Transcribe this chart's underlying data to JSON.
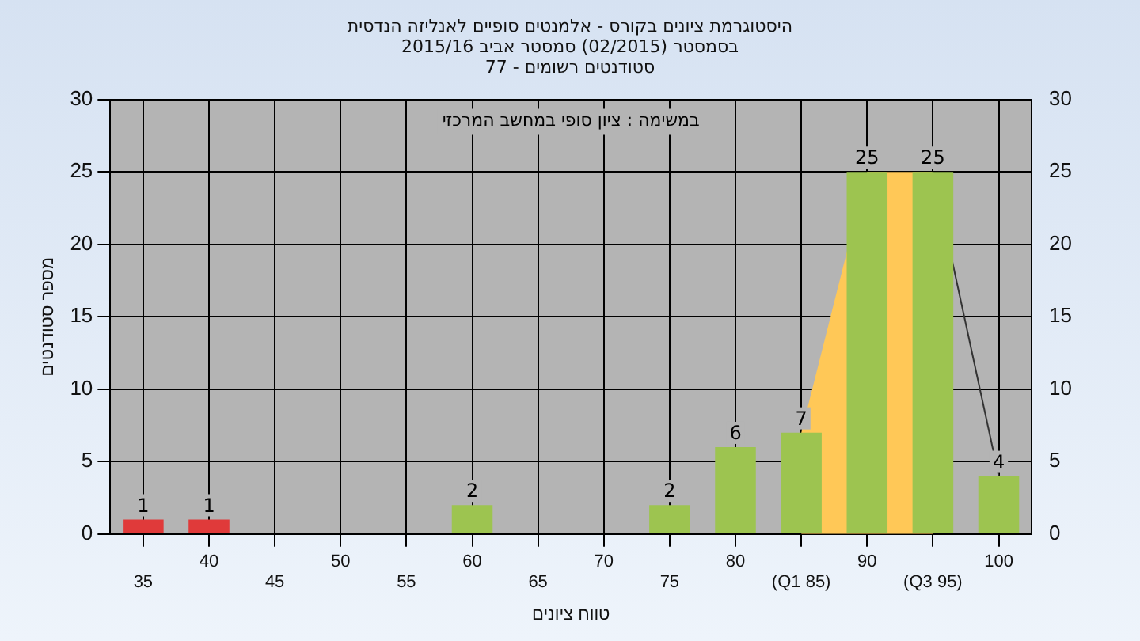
{
  "chart_data": {
    "type": "bar",
    "title": "היסטוגרמת ציונים בקורס - אלמנטים סופיים לאנליזה הנדסית\nבסמסטר  (02/2015)  סמסטר אביב 2015/16\nסטודנטים רשומים - 77",
    "xlabel": "טווח ציונים",
    "ylabel": "מספר סטודנטים",
    "annotations": [
      "במשימה : ציון סופי במחשב המרכזי"
    ],
    "categories": [
      "35",
      "40",
      "45",
      "50",
      "55",
      "60",
      "65",
      "70",
      "75",
      "80",
      "(Q1 85)",
      "90",
      "(Q3 95)",
      "100"
    ],
    "series": [
      {
        "type": "area",
        "color": "#ffc857",
        "values": [
          null,
          null,
          null,
          null,
          null,
          null,
          null,
          null,
          null,
          null,
          7,
          25,
          25,
          null
        ]
      },
      {
        "type": "line",
        "color": "#333333",
        "values": [
          null,
          null,
          null,
          null,
          null,
          null,
          null,
          null,
          null,
          null,
          null,
          null,
          25,
          4
        ]
      },
      {
        "colors": [
          "#e03a3a",
          "#e03a3a",
          "#9dc450",
          "#9dc450",
          "#9dc450",
          "#9dc450",
          "#9dc450",
          "#9dc450",
          "#9dc450",
          "#9dc450",
          "#9dc450",
          "#9dc450",
          "#9dc450",
          "#9dc450"
        ],
        "values": [
          1,
          1,
          null,
          null,
          null,
          2,
          null,
          null,
          2,
          6,
          7,
          25,
          25,
          4
        ],
        "value_labels": [
          "1",
          "1",
          null,
          null,
          null,
          "2",
          null,
          null,
          "2",
          "6",
          "7",
          "25",
          "25",
          "4"
        ]
      }
    ],
    "ylim": [
      0,
      30
    ],
    "yticks": [
      0,
      5,
      10,
      15,
      20,
      25,
      30
    ],
    "y2lim": [
      0,
      30
    ],
    "y2ticks": [
      0,
      5,
      10,
      15,
      20,
      25,
      30
    ],
    "grid": true,
    "legend": false,
    "marker": "none"
  }
}
